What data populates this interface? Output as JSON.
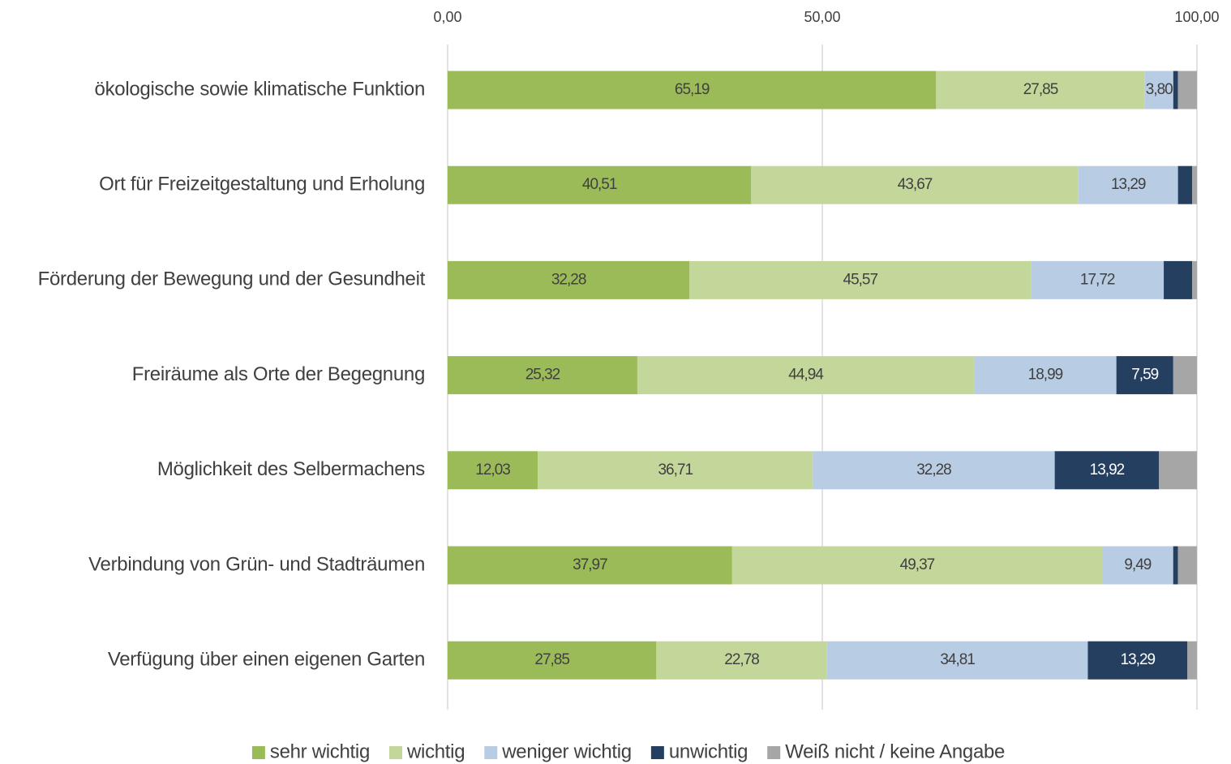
{
  "chart_data": {
    "type": "stacked_bar_horizontal",
    "categories": [
      "ökologische sowie klimatische Funktion",
      "Ort für Freizeitgestaltung und Erholung",
      "Förderung der Bewegung und der Gesundheit",
      "Freiräume als Orte der Begegnung",
      "Möglichkeit des Selbermachens",
      "Verbindung von Grün- und Stadträumen",
      "Verfügung über einen eigenen Garten"
    ],
    "series": [
      {
        "name": "sehr wichtig",
        "color": "#9bbb59",
        "values": [
          65.19,
          40.51,
          32.28,
          25.32,
          12.03,
          37.97,
          27.85
        ],
        "value_labels": [
          "65,19",
          "40,51",
          "32,28",
          "25,32",
          "12,03",
          "37,97",
          "27,85"
        ]
      },
      {
        "name": "wichtig",
        "color": "#c4d79b",
        "values": [
          27.85,
          43.67,
          45.57,
          44.94,
          36.71,
          49.37,
          22.78
        ],
        "value_labels": [
          "27,85",
          "43,67",
          "45,57",
          "44,94",
          "36,71",
          "49,37",
          "22,78"
        ]
      },
      {
        "name": "weniger wichtig",
        "color": "#b8cce4",
        "values": [
          3.8,
          13.29,
          17.72,
          18.99,
          32.28,
          9.49,
          34.81
        ],
        "value_labels": [
          "3,80",
          "13,29",
          "17,72",
          "18,99",
          "32,28",
          "9,49",
          "34,81"
        ]
      },
      {
        "name": "unwichtig",
        "color": "#243f60",
        "values": [
          0.63,
          1.9,
          3.8,
          7.59,
          13.92,
          0.63,
          13.29
        ],
        "value_labels": [
          null,
          null,
          null,
          "7,59",
          "13,92",
          null,
          "13,29"
        ]
      },
      {
        "name": "Weiß nicht / keine Angabe",
        "color": "#a6a6a6",
        "values": [
          2.53,
          0.63,
          0.63,
          3.16,
          5.06,
          2.53,
          1.27
        ],
        "value_labels": [
          null,
          null,
          null,
          null,
          null,
          null,
          null
        ]
      }
    ],
    "xlim": [
      0,
      100
    ],
    "xticks": [
      {
        "value": 0,
        "label": "0,00"
      },
      {
        "value": 50,
        "label": "50,00"
      },
      {
        "value": 100,
        "label": "100,00"
      }
    ],
    "grid": true,
    "legend": "bottom"
  }
}
